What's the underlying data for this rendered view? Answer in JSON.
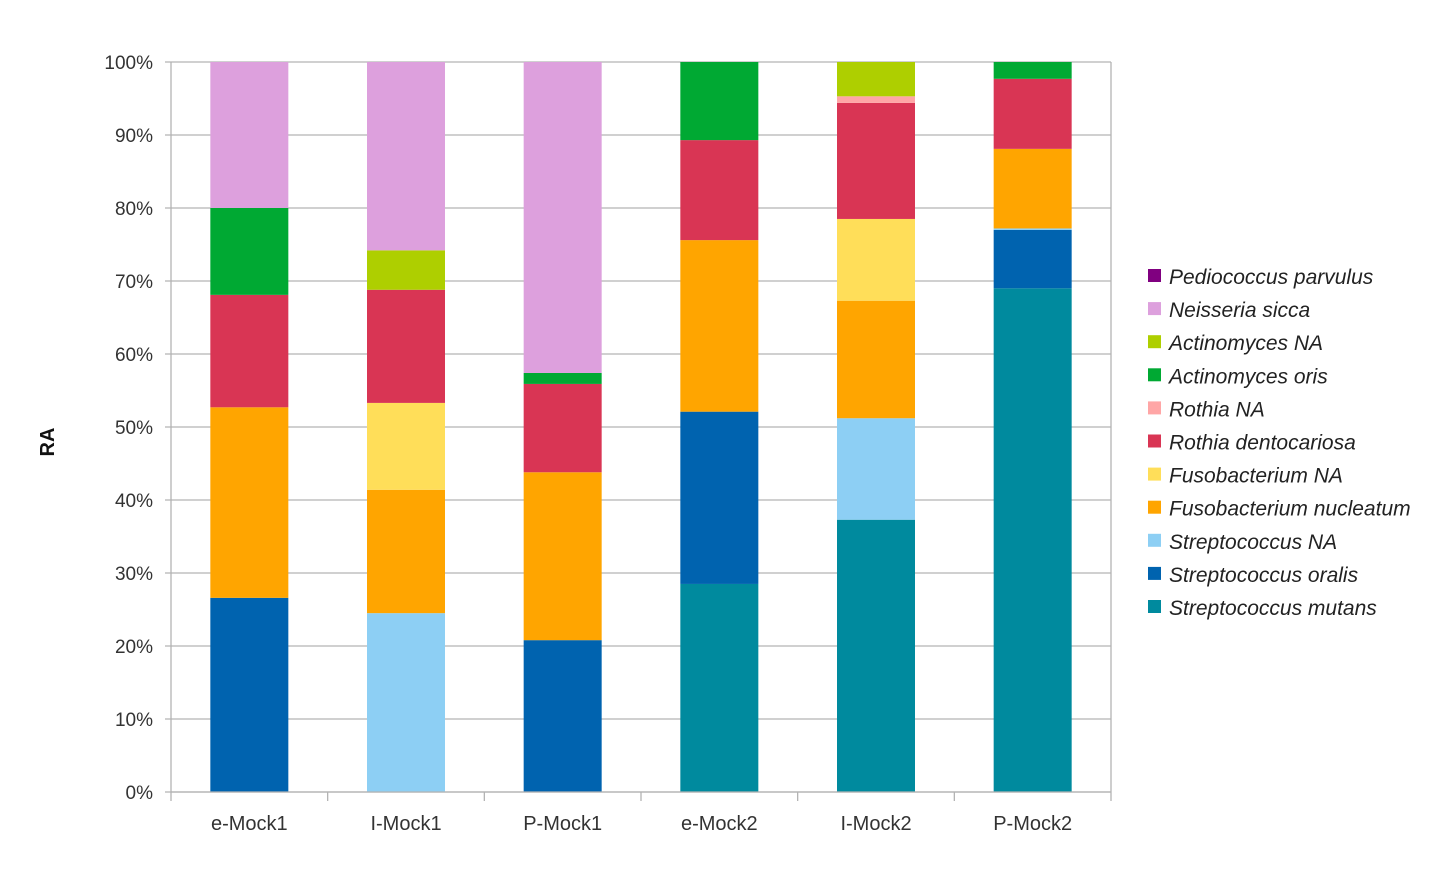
{
  "chart_data": {
    "type": "bar",
    "stacked": true,
    "title": "",
    "xlabel": "",
    "ylabel": "RA",
    "ylim": [
      0,
      100
    ],
    "yticks": [
      "0%",
      "10%",
      "20%",
      "30%",
      "40%",
      "50%",
      "60%",
      "70%",
      "80%",
      "90%",
      "100%"
    ],
    "grid": true,
    "legend_position": "right",
    "categories": [
      "e-Mock1",
      "I-Mock1",
      "P-Mock1",
      "e-Mock2",
      "I-Mock2",
      "P-Mock2"
    ],
    "series": [
      {
        "name": "Streptococcus mutans",
        "color": "#008A9E",
        "values": [
          0,
          0,
          0,
          28.5,
          37.3,
          69.0
        ]
      },
      {
        "name": "Streptococcus oralis",
        "color": "#0063AF",
        "values": [
          26.6,
          0,
          20.8,
          23.6,
          0,
          8.0
        ]
      },
      {
        "name": "Streptococcus NA",
        "color": "#8DCFF4",
        "values": [
          0,
          24.5,
          0,
          0,
          13.9,
          0.2
        ]
      },
      {
        "name": "Fusobacterium nucleatum",
        "color": "#FFA500",
        "values": [
          26.1,
          16.9,
          23.0,
          23.5,
          16.1,
          10.9
        ]
      },
      {
        "name": "Fusobacterium NA",
        "color": "#FFDE59",
        "values": [
          0,
          11.9,
          0,
          0,
          11.2,
          0
        ]
      },
      {
        "name": "Rothia dentocariosa",
        "color": "#D93554",
        "values": [
          15.4,
          15.5,
          12.1,
          13.7,
          15.9,
          9.6
        ]
      },
      {
        "name": "Rothia NA",
        "color": "#FFA6A6",
        "values": [
          0,
          0,
          0,
          0,
          0.9,
          0
        ]
      },
      {
        "name": "Actinomyces oris",
        "color": "#00A933",
        "values": [
          11.9,
          0,
          1.5,
          10.7,
          0,
          2.3
        ]
      },
      {
        "name": "Actinomyces NA",
        "color": "#AECF00",
        "values": [
          0,
          5.4,
          0,
          0,
          4.7,
          0
        ]
      },
      {
        "name": "Neisseria sicca",
        "color": "#DDA0DD",
        "values": [
          20.0,
          25.8,
          42.6,
          0,
          0,
          0
        ]
      },
      {
        "name": "Pediococcus parvulus",
        "color": "#800080",
        "values": [
          0,
          0,
          0,
          0,
          0,
          0
        ]
      }
    ]
  }
}
